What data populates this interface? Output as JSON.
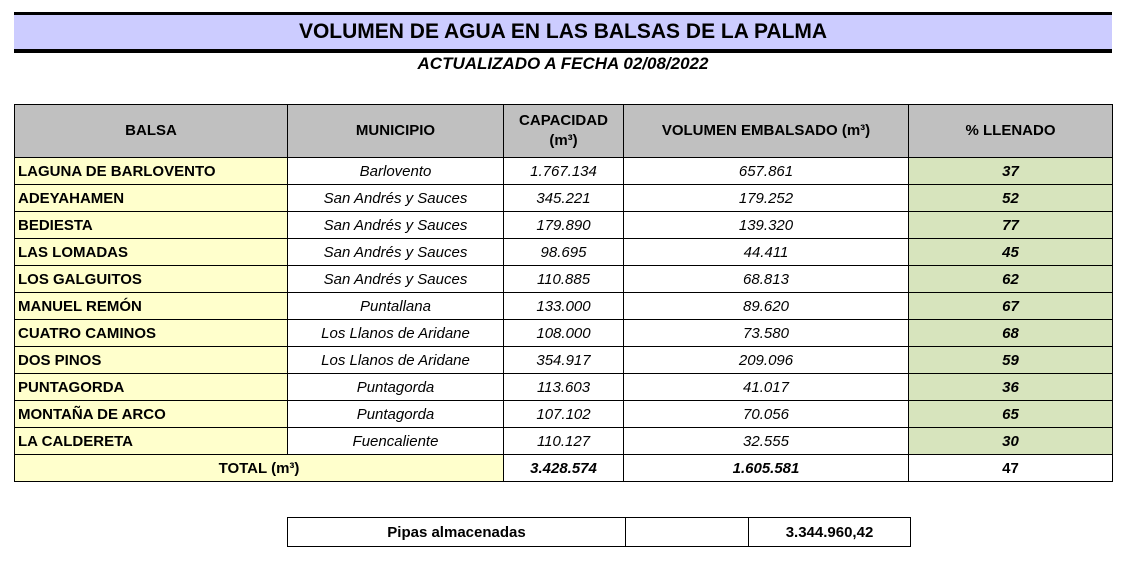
{
  "header": {
    "title": "VOLUMEN DE AGUA EN LAS BALSAS DE LA PALMA",
    "subtitle": "ACTUALIZADO A FECHA 02/08/2022"
  },
  "table": {
    "columns": [
      "BALSA",
      "MUNICIPIO",
      "CAPACIDAD (m³)",
      "VOLUMEN EMBALSADO (m³)",
      "% LLENADO"
    ],
    "rows": [
      [
        "LAGUNA DE BARLOVENTO",
        "Barlovento",
        "1.767.134",
        "657.861",
        "37"
      ],
      [
        "ADEYAHAMEN",
        "San Andrés y Sauces",
        "345.221",
        "179.252",
        "52"
      ],
      [
        "BEDIESTA",
        "San Andrés y Sauces",
        "179.890",
        "139.320",
        "77"
      ],
      [
        "LAS LOMADAS",
        "San Andrés y Sauces",
        "98.695",
        "44.411",
        "45"
      ],
      [
        "LOS GALGUITOS",
        "San Andrés y Sauces",
        "110.885",
        "68.813",
        "62"
      ],
      [
        "MANUEL REMÓN",
        "Puntallana",
        "133.000",
        "89.620",
        "67"
      ],
      [
        "CUATRO CAMINOS",
        "Los Llanos de Aridane",
        "108.000",
        "73.580",
        "68"
      ],
      [
        "DOS PINOS",
        "Los Llanos de Aridane",
        "354.917",
        "209.096",
        "59"
      ],
      [
        "PUNTAGORDA",
        "Puntagorda",
        "113.603",
        "41.017",
        "36"
      ],
      [
        "MONTAÑA DE ARCO",
        "Puntagorda",
        "107.102",
        "70.056",
        "65"
      ],
      [
        "LA CALDERETA",
        "Fuencaliente",
        "110.127",
        "32.555",
        "30"
      ]
    ],
    "total": [
      "TOTAL (m³)",
      "3.428.574",
      "1.605.581",
      "47"
    ]
  },
  "summary": {
    "label": "Pipas almacenadas",
    "value": "3.344.960,42"
  }
}
